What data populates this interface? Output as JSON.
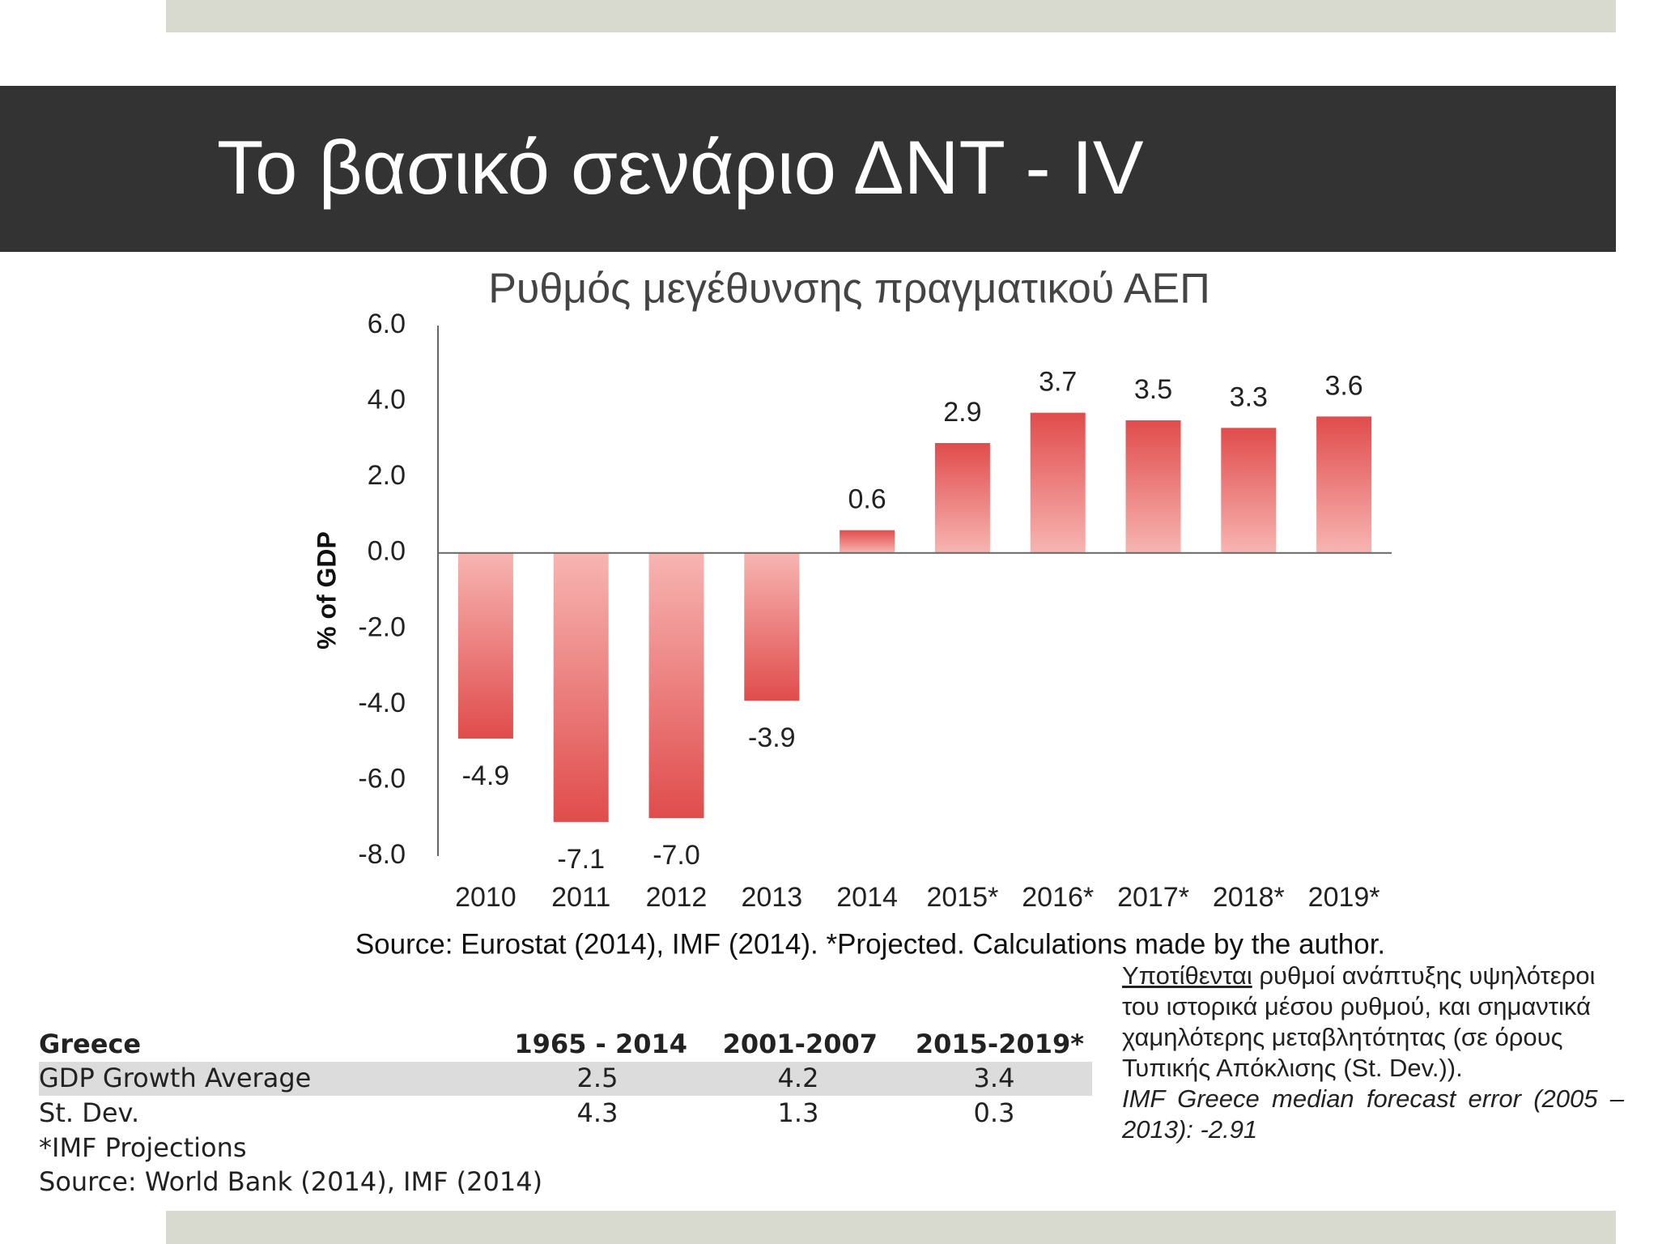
{
  "slide_title": "Το βασικό σενάριο ΔΝΤ - IV",
  "chart_data": {
    "type": "bar",
    "title": "Ρυθμός μεγέθυνσης πραγματικού ΑΕΠ",
    "y_label": "% of GDP",
    "categories": [
      "2010",
      "2011",
      "2012",
      "2013",
      "2014",
      "2015*",
      "2016*",
      "2017*",
      "2018*",
      "2019*"
    ],
    "values": [
      -4.9,
      -7.1,
      -7.0,
      -3.9,
      0.6,
      2.9,
      3.7,
      3.5,
      3.3,
      3.6
    ],
    "value_labels": [
      "-4.9",
      "-7.1",
      "-7.0",
      "-3.9",
      "0.6",
      "2.9",
      "3.7",
      "3.5",
      "3.3",
      "3.6"
    ],
    "color": "#e04c4c",
    "ylim": [
      -8,
      6
    ],
    "yticks": [
      {
        "value": 6,
        "label": "6.0"
      },
      {
        "value": 4,
        "label": "4.0"
      },
      {
        "value": 2,
        "label": "2.0"
      },
      {
        "value": 0,
        "label": "0.0"
      },
      {
        "value": -2,
        "label": "-2.0"
      },
      {
        "value": -4,
        "label": "-4.0"
      },
      {
        "value": -6,
        "label": "-6.0"
      },
      {
        "value": -8,
        "label": "-8.0"
      }
    ],
    "grid": false,
    "source": "Source: Eurostat (2014), IMF (2014). *Projected. Calculations made by the author."
  },
  "table": {
    "header": [
      "Greece",
      "1965 - 2014",
      "2001-2007",
      "2015-2019*"
    ],
    "rows": [
      [
        "GDP Growth Average",
        "2.5",
        "4.2",
        "3.4"
      ],
      [
        "St. Dev.",
        "4.3",
        "1.3",
        "0.3"
      ]
    ],
    "footnotes": [
      "*IMF Projections",
      "Source: World Bank (2014), IMF (2014)"
    ]
  },
  "note": {
    "underlined": "Υποτίθενται",
    "text": "ρυθμοί ανάπτυξης υψηλότεροι του ιστορικά μέσου ρυθμού, και σημαντικά χαμηλότερης μεταβλητότητας (σε όρους Τυπικής Απόκλισης (St. Dev.)).",
    "italic": "IMF Greece median forecast error (2005 – 2013): -2.91"
  }
}
